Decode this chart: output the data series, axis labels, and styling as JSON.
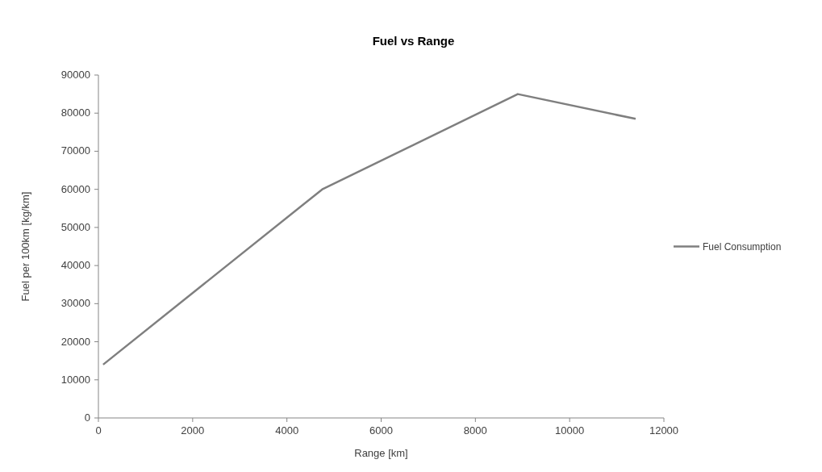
{
  "chart_data": {
    "type": "line",
    "title": "Fuel vs Range",
    "xlabel": "Range [km]",
    "ylabel": "Fuel per 100km [kg/km]",
    "x": [
      100,
      4750,
      8900,
      11400
    ],
    "series": [
      {
        "name": "Fuel Consumption",
        "color": "#7f7f7f",
        "values": [
          14000,
          60000,
          85000,
          78500
        ]
      }
    ],
    "xlim": [
      0,
      12000
    ],
    "xticks": [
      0,
      2000,
      4000,
      6000,
      8000,
      10000,
      12000
    ],
    "ylim": [
      0,
      90000
    ],
    "yticks": [
      0,
      10000,
      20000,
      30000,
      40000,
      50000,
      60000,
      70000,
      80000,
      90000
    ],
    "grid": false,
    "legend": "right",
    "marker": "none",
    "line_style": "solid"
  }
}
